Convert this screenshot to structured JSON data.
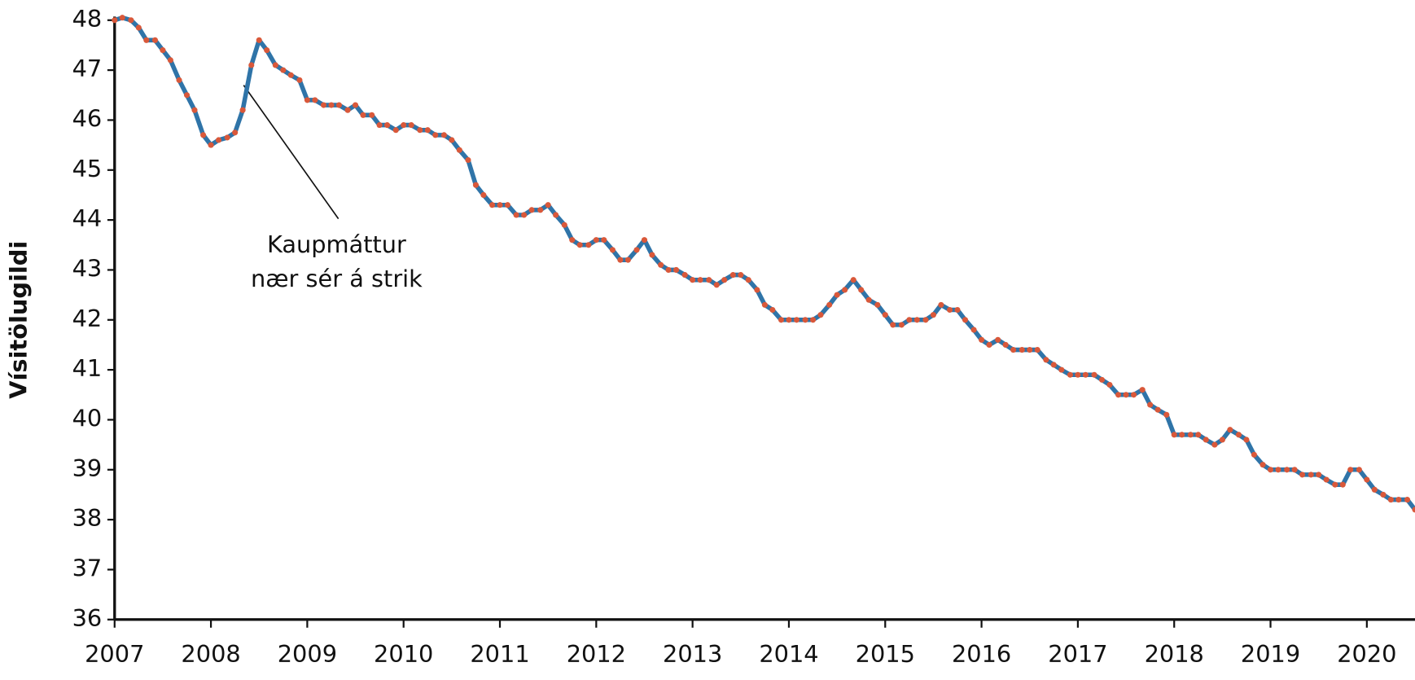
{
  "chart_data": {
    "type": "line",
    "y_label": "Vísitölugildi",
    "annotation": [
      "Kaupmáttur",
      "nær sér á strik"
    ],
    "x": [
      2007,
      2007.08,
      2007.17,
      2007.25,
      2007.33,
      2007.42,
      2007.5,
      2007.58,
      2007.67,
      2007.75,
      2007.83,
      2007.92,
      2008,
      2008.08,
      2008.17,
      2008.25,
      2008.33,
      2008.42,
      2008.5,
      2008.58,
      2008.67,
      2008.75,
      2008.83,
      2008.92,
      2009,
      2009.08,
      2009.17,
      2009.25,
      2009.33,
      2009.42,
      2009.5,
      2009.58,
      2009.67,
      2009.75,
      2009.83,
      2009.92,
      2010,
      2010.08,
      2010.17,
      2010.25,
      2010.33,
      2010.42,
      2010.5,
      2010.58,
      2010.67,
      2010.75,
      2010.83,
      2010.92,
      2011,
      2011.08,
      2011.17,
      2011.25,
      2011.33,
      2011.42,
      2011.5,
      2011.58,
      2011.67,
      2011.75,
      2011.83,
      2011.92,
      2012,
      2012.08,
      2012.17,
      2012.25,
      2012.33,
      2012.42,
      2012.5,
      2012.58,
      2012.67,
      2012.75,
      2012.83,
      2012.92,
      2013,
      2013.08,
      2013.17,
      2013.25,
      2013.33,
      2013.42,
      2013.5,
      2013.58,
      2013.67,
      2013.75,
      2013.83,
      2013.92,
      2014,
      2014.08,
      2014.17,
      2014.25,
      2014.33,
      2014.42,
      2014.5,
      2014.58,
      2014.67,
      2014.75,
      2014.83,
      2014.92,
      2015,
      2015.08,
      2015.17,
      2015.25,
      2015.33,
      2015.42,
      2015.5,
      2015.58,
      2015.67,
      2015.75,
      2015.83,
      2015.92,
      2016,
      2016.08,
      2016.17,
      2016.25,
      2016.33,
      2016.42,
      2016.5,
      2016.58,
      2016.67,
      2016.75,
      2016.83,
      2016.92,
      2017,
      2017.08,
      2017.17,
      2017.25,
      2017.33,
      2017.42,
      2017.5,
      2017.58,
      2017.67,
      2017.75,
      2017.83,
      2017.92,
      2018,
      2018.08,
      2018.17,
      2018.25,
      2018.33,
      2018.42,
      2018.5,
      2018.58,
      2018.67,
      2018.75,
      2018.83,
      2018.92,
      2019,
      2019.08,
      2019.17,
      2019.25,
      2019.33,
      2019.42,
      2019.5,
      2019.58,
      2019.67,
      2019.75,
      2019.83,
      2019.92,
      2020,
      2020.08,
      2020.17,
      2020.25,
      2020.33,
      2020.42,
      2020.5
    ],
    "series": [
      {
        "color": "#2f74a8",
        "marker_color": "#d9583a",
        "values": [
          48.0,
          48.05,
          48.0,
          47.85,
          47.6,
          47.6,
          47.4,
          47.2,
          46.8,
          46.5,
          46.2,
          45.7,
          45.5,
          45.6,
          45.65,
          45.75,
          46.2,
          47.1,
          47.6,
          47.4,
          47.1,
          47.0,
          46.9,
          46.8,
          46.4,
          46.4,
          46.3,
          46.3,
          46.3,
          46.2,
          46.3,
          46.1,
          46.1,
          45.9,
          45.9,
          45.8,
          45.9,
          45.9,
          45.8,
          45.8,
          45.7,
          45.7,
          45.6,
          45.4,
          45.2,
          44.7,
          44.5,
          44.3,
          44.3,
          44.3,
          44.1,
          44.1,
          44.2,
          44.2,
          44.3,
          44.1,
          43.9,
          43.6,
          43.5,
          43.5,
          43.6,
          43.6,
          43.4,
          43.2,
          43.2,
          43.4,
          43.6,
          43.3,
          43.1,
          43.0,
          43.0,
          42.9,
          42.8,
          42.8,
          42.8,
          42.7,
          42.8,
          42.9,
          42.9,
          42.8,
          42.6,
          42.3,
          42.2,
          42.0,
          42.0,
          42.0,
          42.0,
          42.0,
          42.1,
          42.3,
          42.5,
          42.6,
          42.8,
          42.6,
          42.4,
          42.3,
          42.1,
          41.9,
          41.9,
          42.0,
          42.0,
          42.0,
          42.1,
          42.3,
          42.2,
          42.2,
          42.0,
          41.8,
          41.6,
          41.5,
          41.6,
          41.5,
          41.4,
          41.4,
          41.4,
          41.4,
          41.2,
          41.1,
          41.0,
          40.9,
          40.9,
          40.9,
          40.9,
          40.8,
          40.7,
          40.5,
          40.5,
          40.5,
          40.6,
          40.3,
          40.2,
          40.1,
          39.7,
          39.7,
          39.7,
          39.7,
          39.6,
          39.5,
          39.6,
          39.8,
          39.7,
          39.6,
          39.3,
          39.1,
          39.0,
          39.0,
          39.0,
          39.0,
          38.9,
          38.9,
          38.9,
          38.8,
          38.7,
          38.7,
          39.0,
          39.0,
          38.8,
          38.6,
          38.5,
          38.4,
          38.4,
          38.4,
          38.2
        ]
      }
    ],
    "xlim": [
      2007,
      2020.5
    ],
    "xticks": [
      2007,
      2008,
      2009,
      2010,
      2011,
      2012,
      2013,
      2014,
      2015,
      2016,
      2017,
      2018,
      2019,
      2020
    ],
    "ylim": [
      36,
      48
    ],
    "yticks": [
      36,
      37,
      38,
      39,
      40,
      41,
      42,
      43,
      44,
      45,
      46,
      47,
      48
    ]
  }
}
